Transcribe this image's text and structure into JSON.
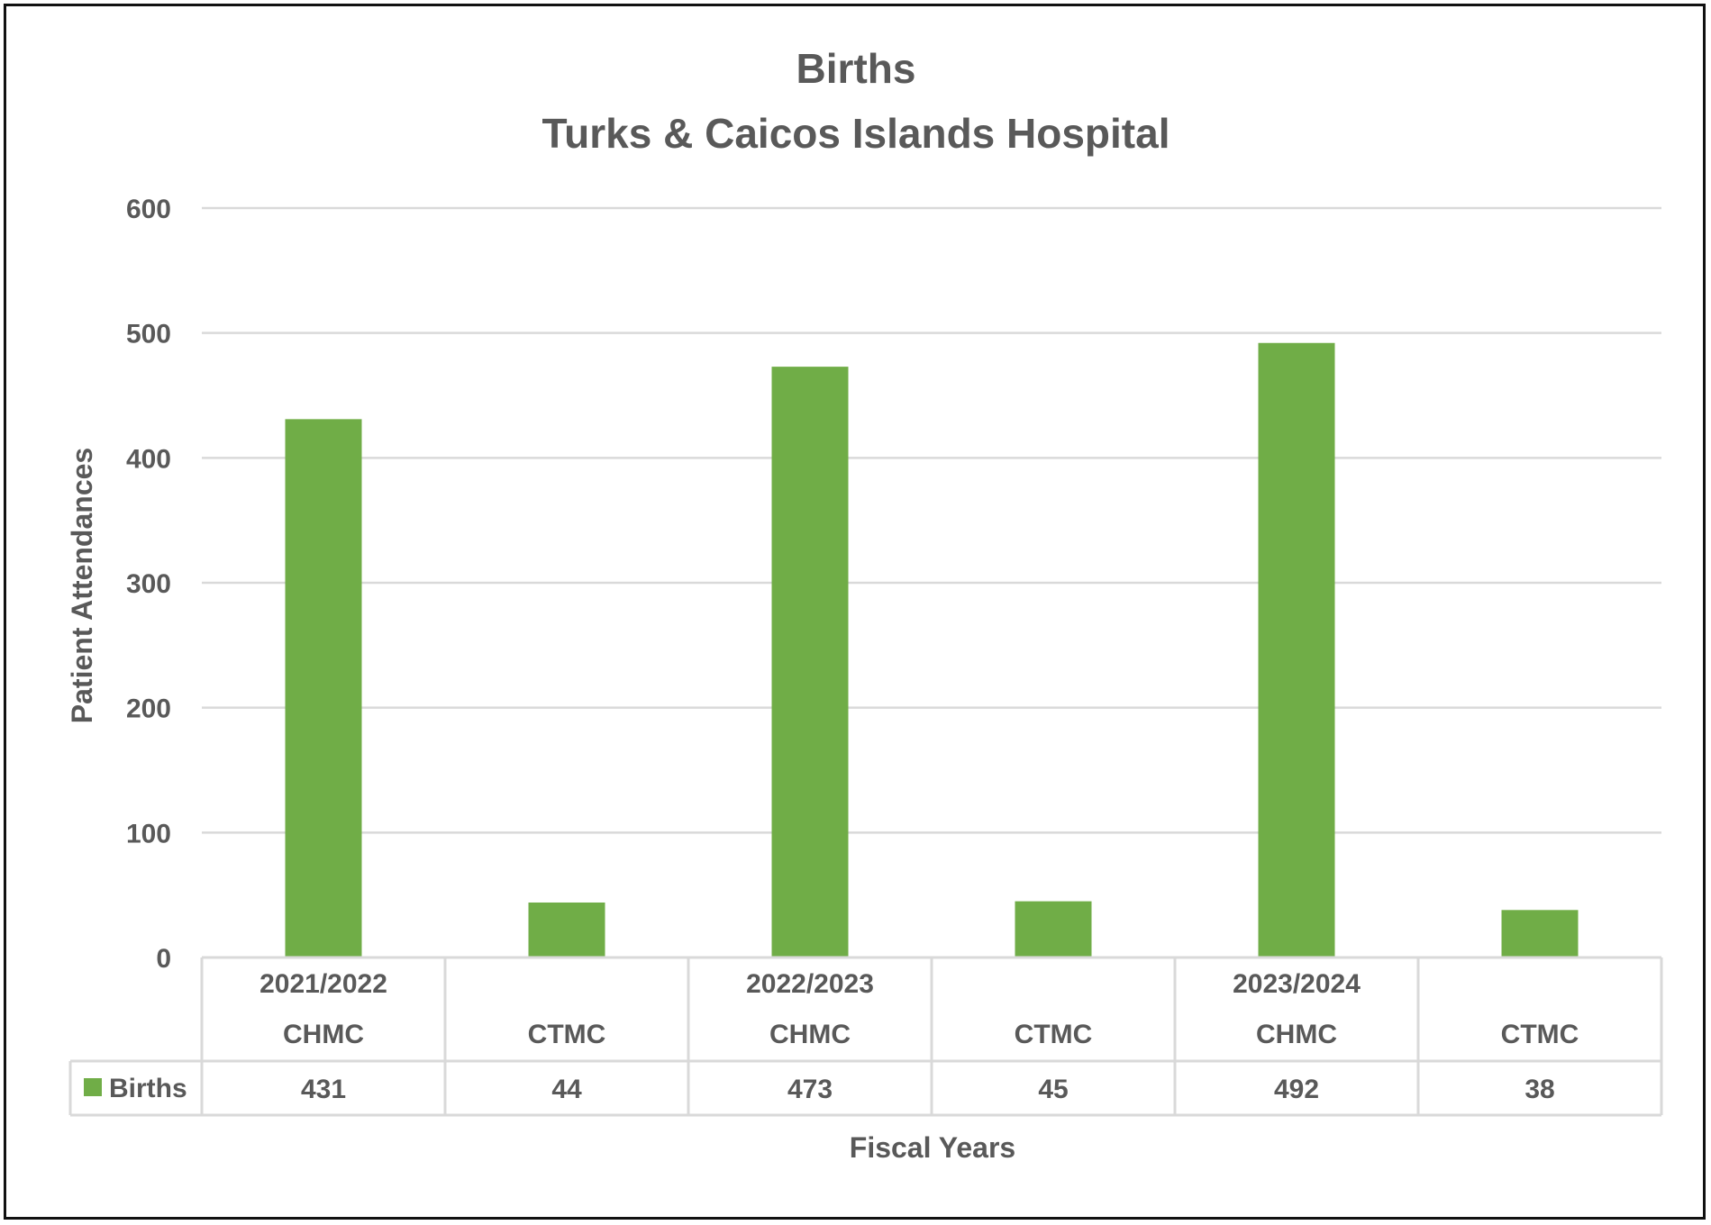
{
  "colors": {
    "bar": "#70ad47",
    "text": "#595959",
    "grid": "#d9d9d9",
    "table_border": "#d9d9d9",
    "frame": "#111111"
  },
  "chart_data": {
    "type": "bar",
    "title": "Births",
    "subtitle": "Turks & Caicos Islands Hospital",
    "xlabel": "Fiscal Years",
    "ylabel": "Patient Attendances",
    "ylim": [
      0,
      600
    ],
    "yticks": [
      "0",
      "100",
      "200",
      "300",
      "400",
      "500",
      "600"
    ],
    "grid": true,
    "legend": "data-table",
    "groups": [
      "2021/2022",
      "2022/2023",
      "2023/2024"
    ],
    "categories": [
      "CHMC",
      "CTMC",
      "CHMC",
      "CTMC",
      "CHMC",
      "CTMC"
    ],
    "series": [
      {
        "name": "Births",
        "values": [
          431,
          44,
          473,
          45,
          492,
          38
        ],
        "labels": [
          "431",
          "44",
          "473",
          "45",
          "492",
          "38"
        ]
      }
    ]
  }
}
